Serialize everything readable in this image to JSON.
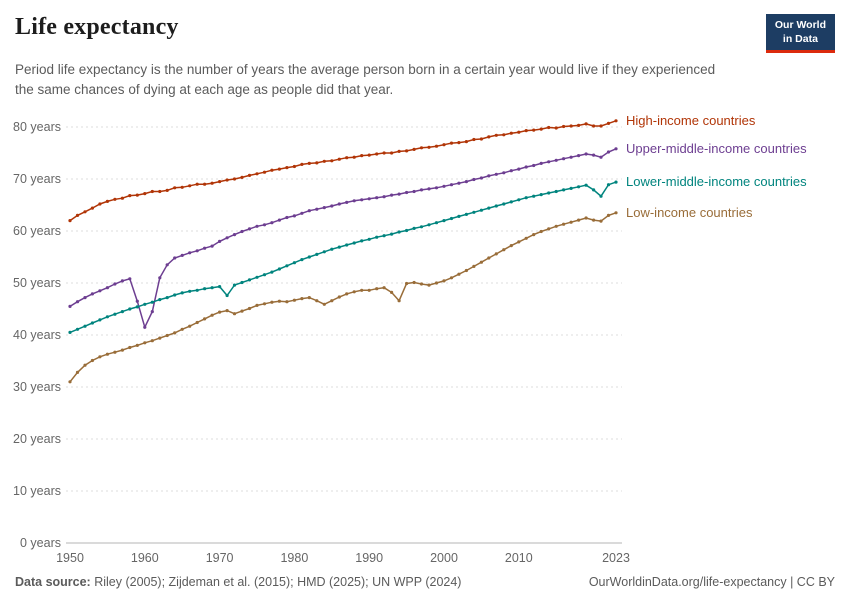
{
  "header": {
    "title": "Life expectancy",
    "subtitle": "Period life expectancy is the number of years the average person born in a certain year would live if they experienced the same chances of dying at each age as people did that year.",
    "logo": {
      "line1": "Our World",
      "line2": "in Data",
      "bg_color": "#1d3d63",
      "accent_color": "#dc2a0d"
    }
  },
  "chart_data": {
    "type": "line",
    "title": "Life expectancy",
    "xlabel": "",
    "ylabel": "",
    "grid": true,
    "legend_position": "right-of-line-ends",
    "ylim": [
      0,
      85
    ],
    "y_ticks": [
      0,
      10,
      20,
      30,
      40,
      50,
      60,
      70,
      80
    ],
    "y_tick_suffix": " years",
    "x_ticks": [
      1950,
      1960,
      1970,
      1980,
      1990,
      2000,
      2010,
      2023
    ],
    "x": [
      1950,
      1951,
      1952,
      1953,
      1954,
      1955,
      1956,
      1957,
      1958,
      1959,
      1960,
      1961,
      1962,
      1963,
      1964,
      1965,
      1966,
      1967,
      1968,
      1969,
      1970,
      1971,
      1972,
      1973,
      1974,
      1975,
      1976,
      1977,
      1978,
      1979,
      1980,
      1981,
      1982,
      1983,
      1984,
      1985,
      1986,
      1987,
      1988,
      1989,
      1990,
      1991,
      1992,
      1993,
      1994,
      1995,
      1996,
      1997,
      1998,
      1999,
      2000,
      2001,
      2002,
      2003,
      2004,
      2005,
      2006,
      2007,
      2008,
      2009,
      2010,
      2011,
      2012,
      2013,
      2014,
      2015,
      2016,
      2017,
      2018,
      2019,
      2020,
      2021,
      2022,
      2023
    ],
    "series": [
      {
        "name": "High-income countries",
        "color": "#b13507",
        "values": [
          62.0,
          63.0,
          63.7,
          64.4,
          65.2,
          65.7,
          66.1,
          66.3,
          66.8,
          66.9,
          67.2,
          67.6,
          67.6,
          67.8,
          68.3,
          68.4,
          68.7,
          69.0,
          69.0,
          69.2,
          69.5,
          69.8,
          70.0,
          70.3,
          70.7,
          71.0,
          71.3,
          71.7,
          71.9,
          72.2,
          72.4,
          72.8,
          73.0,
          73.1,
          73.4,
          73.5,
          73.8,
          74.1,
          74.2,
          74.5,
          74.6,
          74.8,
          75.0,
          75.0,
          75.3,
          75.4,
          75.7,
          76.0,
          76.1,
          76.3,
          76.6,
          76.9,
          77.0,
          77.2,
          77.6,
          77.7,
          78.1,
          78.4,
          78.5,
          78.8,
          79.0,
          79.3,
          79.4,
          79.6,
          79.9,
          79.8,
          80.1,
          80.2,
          80.3,
          80.6,
          80.2,
          80.2,
          80.7,
          81.2
        ]
      },
      {
        "name": "Upper-middle-income countries",
        "color": "#6d3e91",
        "values": [
          45.5,
          46.4,
          47.2,
          47.9,
          48.5,
          49.1,
          49.8,
          50.4,
          50.8,
          46.5,
          41.5,
          44.5,
          51.0,
          53.5,
          54.8,
          55.3,
          55.8,
          56.2,
          56.7,
          57.1,
          58.0,
          58.7,
          59.3,
          59.9,
          60.4,
          60.9,
          61.2,
          61.6,
          62.1,
          62.6,
          62.9,
          63.4,
          63.9,
          64.2,
          64.5,
          64.8,
          65.2,
          65.5,
          65.8,
          66.0,
          66.2,
          66.4,
          66.6,
          66.9,
          67.1,
          67.4,
          67.6,
          67.9,
          68.1,
          68.3,
          68.6,
          68.9,
          69.2,
          69.5,
          69.9,
          70.2,
          70.6,
          70.9,
          71.2,
          71.6,
          71.9,
          72.3,
          72.6,
          73.0,
          73.3,
          73.6,
          73.9,
          74.2,
          74.5,
          74.8,
          74.6,
          74.2,
          75.2,
          75.8
        ]
      },
      {
        "name": "Lower-middle-income countries",
        "color": "#00847e",
        "values": [
          40.5,
          41.1,
          41.7,
          42.3,
          42.9,
          43.5,
          44.0,
          44.5,
          45.0,
          45.4,
          45.9,
          46.3,
          46.8,
          47.2,
          47.7,
          48.1,
          48.4,
          48.6,
          48.9,
          49.1,
          49.3,
          47.6,
          49.6,
          50.1,
          50.6,
          51.1,
          51.6,
          52.1,
          52.7,
          53.3,
          53.9,
          54.5,
          55.0,
          55.5,
          56.0,
          56.5,
          56.9,
          57.3,
          57.7,
          58.1,
          58.4,
          58.8,
          59.1,
          59.4,
          59.8,
          60.1,
          60.5,
          60.8,
          61.2,
          61.6,
          62.0,
          62.4,
          62.8,
          63.2,
          63.6,
          64.0,
          64.4,
          64.8,
          65.2,
          65.6,
          66.0,
          66.4,
          66.7,
          67.0,
          67.3,
          67.6,
          67.9,
          68.2,
          68.5,
          68.8,
          67.9,
          66.7,
          68.9,
          69.4
        ]
      },
      {
        "name": "Low-income countries",
        "color": "#996d39",
        "values": [
          31.0,
          32.8,
          34.2,
          35.1,
          35.8,
          36.3,
          36.7,
          37.1,
          37.6,
          38.0,
          38.5,
          38.9,
          39.4,
          39.9,
          40.4,
          41.1,
          41.7,
          42.4,
          43.1,
          43.8,
          44.4,
          44.7,
          44.1,
          44.6,
          45.1,
          45.7,
          46.0,
          46.3,
          46.5,
          46.4,
          46.7,
          47.0,
          47.2,
          46.6,
          45.9,
          46.6,
          47.3,
          47.9,
          48.3,
          48.6,
          48.6,
          48.9,
          49.1,
          48.2,
          46.6,
          49.9,
          50.1,
          49.8,
          49.6,
          50.0,
          50.4,
          51.0,
          51.7,
          52.4,
          53.2,
          54.0,
          54.8,
          55.6,
          56.4,
          57.2,
          57.9,
          58.6,
          59.3,
          59.9,
          60.4,
          60.9,
          61.3,
          61.7,
          62.1,
          62.5,
          62.1,
          61.9,
          63.0,
          63.5
        ]
      }
    ]
  },
  "footer": {
    "source_label": "Data source:",
    "source_text": " Riley (2005); Zijdeman et al. (2015); HMD (2025); UN WPP (2024)",
    "link_text": "OurWorldinData.org/life-expectancy | CC BY"
  }
}
